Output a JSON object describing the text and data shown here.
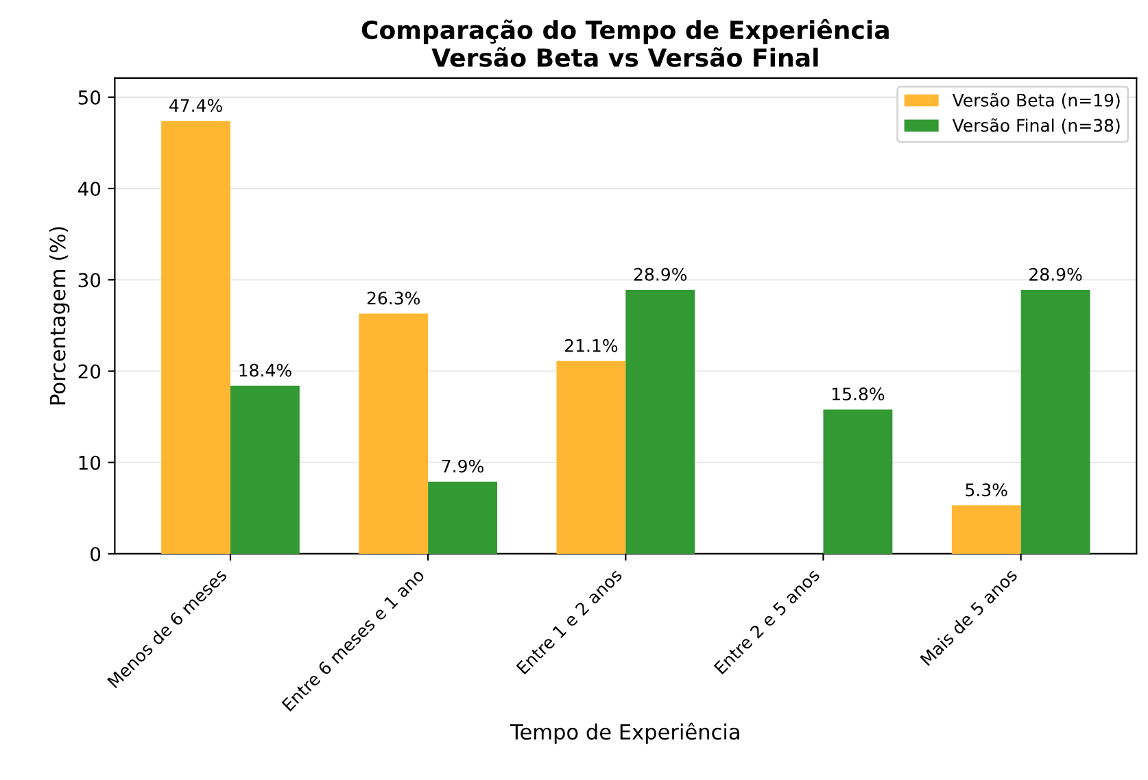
{
  "chart_data": {
    "type": "bar",
    "title": "Comparação do Tempo de Experiência\nVersão Beta vs Versão Final",
    "xlabel": "Tempo de Experiência",
    "ylabel": "Porcentagem (%)",
    "categories": [
      "Menos de 6 meses",
      "Entre 6 meses e 1 ano",
      "Entre 1 e 2 anos",
      "Entre 2 e 5 anos",
      "Mais de 5 anos"
    ],
    "series": [
      {
        "name": "Versão Beta (n=19)",
        "color": "#ffb733",
        "values": [
          47.4,
          26.3,
          21.1,
          null,
          5.3
        ],
        "value_labels": [
          "47.4%",
          "26.3%",
          "21.1%",
          null,
          "5.3%"
        ]
      },
      {
        "name": "Versão Final (n=38)",
        "color": "#339933",
        "values": [
          18.4,
          7.9,
          28.9,
          15.8,
          28.9
        ],
        "value_labels": [
          "18.4%",
          "7.9%",
          "28.9%",
          "15.8%",
          "28.9%"
        ]
      }
    ],
    "ylim": [
      0,
      52.1
    ],
    "yticks": [
      0,
      10,
      20,
      30,
      40,
      50
    ],
    "grid": "y",
    "legend": "top right"
  }
}
